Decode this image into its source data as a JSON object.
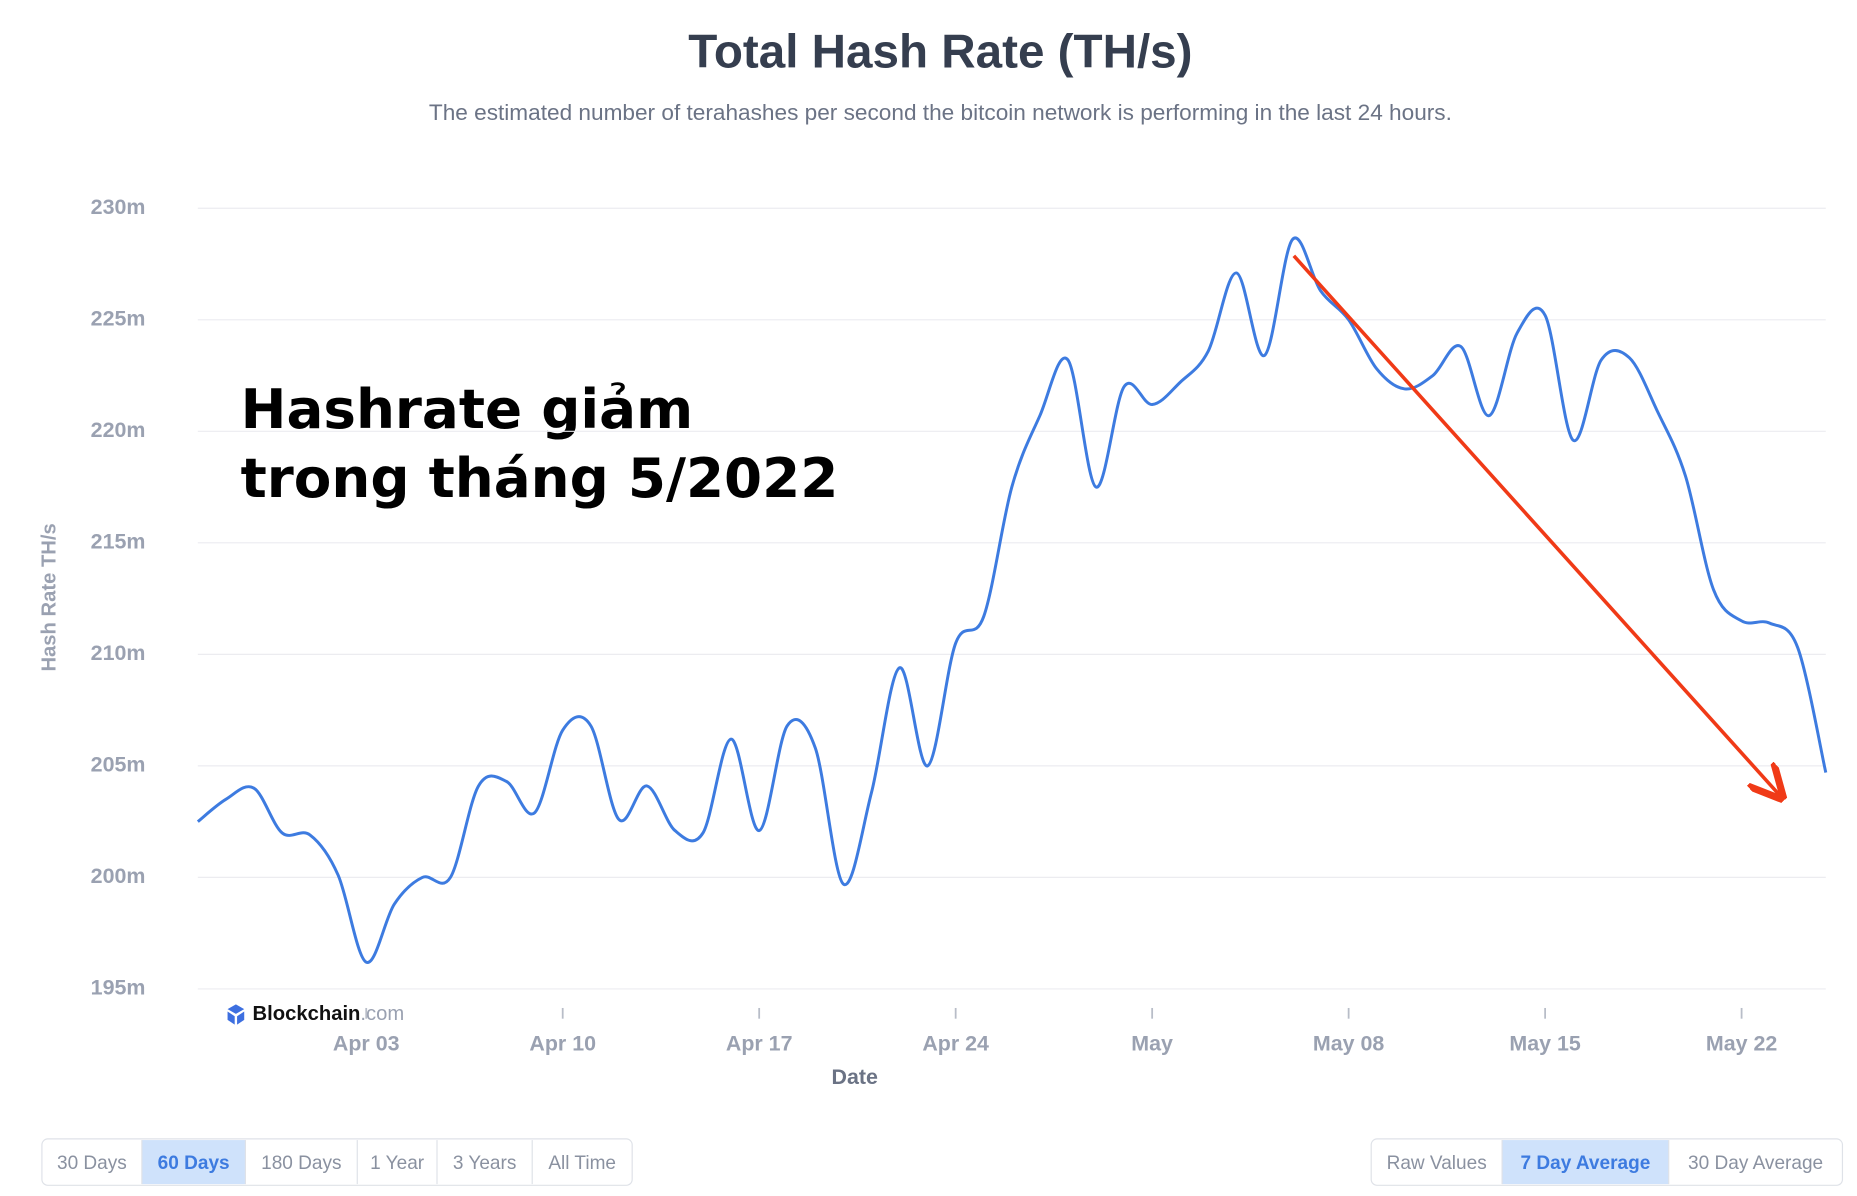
{
  "chart_data": {
    "type": "line",
    "title": "Total Hash Rate (TH/s)",
    "subtitle": "The estimated number of terahashes per second the bitcoin network is performing in the last 24 hours.",
    "y_label": "Hash Rate TH/s",
    "x_label": "Date",
    "annotation": [
      "Hashrate giảm",
      "trong tháng 5/2022"
    ],
    "watermark": [
      "Blockchain",
      ".com"
    ],
    "categories": [
      null,
      null,
      null,
      null,
      null,
      null,
      "Apr 03",
      null,
      null,
      null,
      null,
      null,
      null,
      "Apr 10",
      null,
      null,
      null,
      null,
      null,
      null,
      "Apr 17",
      null,
      null,
      null,
      null,
      null,
      null,
      "Apr 24",
      null,
      null,
      null,
      null,
      null,
      null,
      "May",
      null,
      null,
      null,
      null,
      null,
      null,
      "May 08",
      null,
      null,
      null,
      null,
      null,
      null,
      "May 15",
      null,
      null,
      null,
      null,
      null,
      null,
      "May 22",
      null,
      null,
      null
    ],
    "series": [
      {
        "name": "Hash Rate",
        "color": "#3d7be0",
        "values": [
          202.5,
          203.5,
          204,
          202,
          201.9,
          200.1,
          196.2,
          198.8,
          200,
          200,
          204.1,
          204.3,
          202.9,
          206.6,
          206.8,
          202.6,
          204.1,
          202.1,
          202,
          206.2,
          202.1,
          206.8,
          205.8,
          199.7,
          203.8,
          209.4,
          205,
          210.5,
          211.7,
          217.5,
          220.7,
          223.2,
          217.5,
          222,
          221.2,
          222.2,
          223.6,
          227.1,
          223.4,
          228.6,
          226.3,
          225,
          222.8,
          221.9,
          222.5,
          223.8,
          220.7,
          224.4,
          225.2,
          219.6,
          223.2,
          223.3,
          220.9,
          218,
          212.9,
          211.5,
          211.4,
          210.3,
          204.7
        ]
      }
    ],
    "ylim": [
      195,
      230
    ],
    "yticks": [
      {
        "value": 195,
        "label": "195m"
      },
      {
        "value": 200,
        "label": "200m"
      },
      {
        "value": 205,
        "label": "205m"
      },
      {
        "value": 210,
        "label": "210m"
      },
      {
        "value": 215,
        "label": "215m"
      },
      {
        "value": 220,
        "label": "220m"
      },
      {
        "value": 225,
        "label": "225m"
      },
      {
        "value": 230,
        "label": "230m"
      }
    ],
    "grid": true
  },
  "controls": {
    "range": [
      "30 Days",
      "60 Days",
      "180 Days",
      "1 Year",
      "3 Years",
      "All Time"
    ],
    "range_active": 1,
    "average": [
      "Raw Values",
      "7 Day Average",
      "30 Day Average"
    ],
    "average_active": 1
  }
}
